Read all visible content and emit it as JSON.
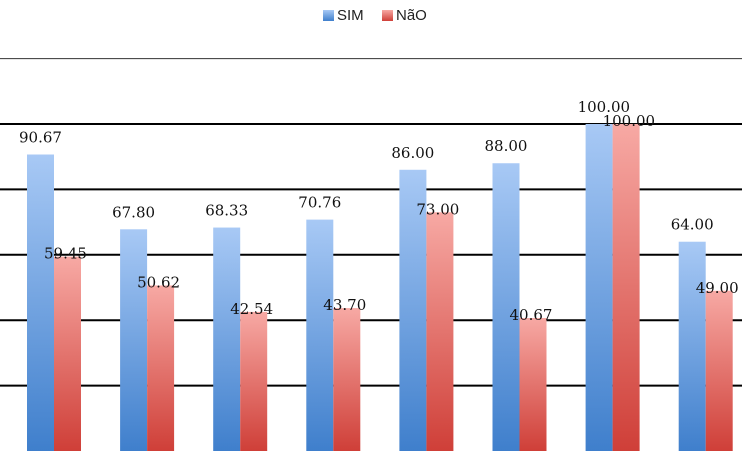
{
  "chart_data": {
    "type": "bar",
    "categories": [
      "",
      "",
      "",
      "",
      "",
      "",
      "",
      ""
    ],
    "series": [
      {
        "name": "SIM",
        "values": [
          90.67,
          67.8,
          68.33,
          70.76,
          86.0,
          88.0,
          100.0,
          64.0
        ],
        "color": "#5b9bd5"
      },
      {
        "name": "NãO",
        "values": [
          59.45,
          50.62,
          42.54,
          43.7,
          73.0,
          40.67,
          100.0,
          49.0
        ],
        "color": "#e06666"
      }
    ],
    "value_labels": {
      "SIM": [
        "90.67",
        "67.80",
        "68.33",
        "70.76",
        "86.00",
        "88.00",
        "100.00",
        "64.00"
      ],
      "NãO": [
        "59.45",
        "50.62",
        "42.54",
        "43.70",
        "73.00",
        "40.67",
        "100.00",
        "49.00"
      ]
    },
    "title": "",
    "xlabel": "",
    "ylabel": "",
    "ylim": [
      0,
      120
    ],
    "grid": true,
    "legend": "top-center"
  }
}
